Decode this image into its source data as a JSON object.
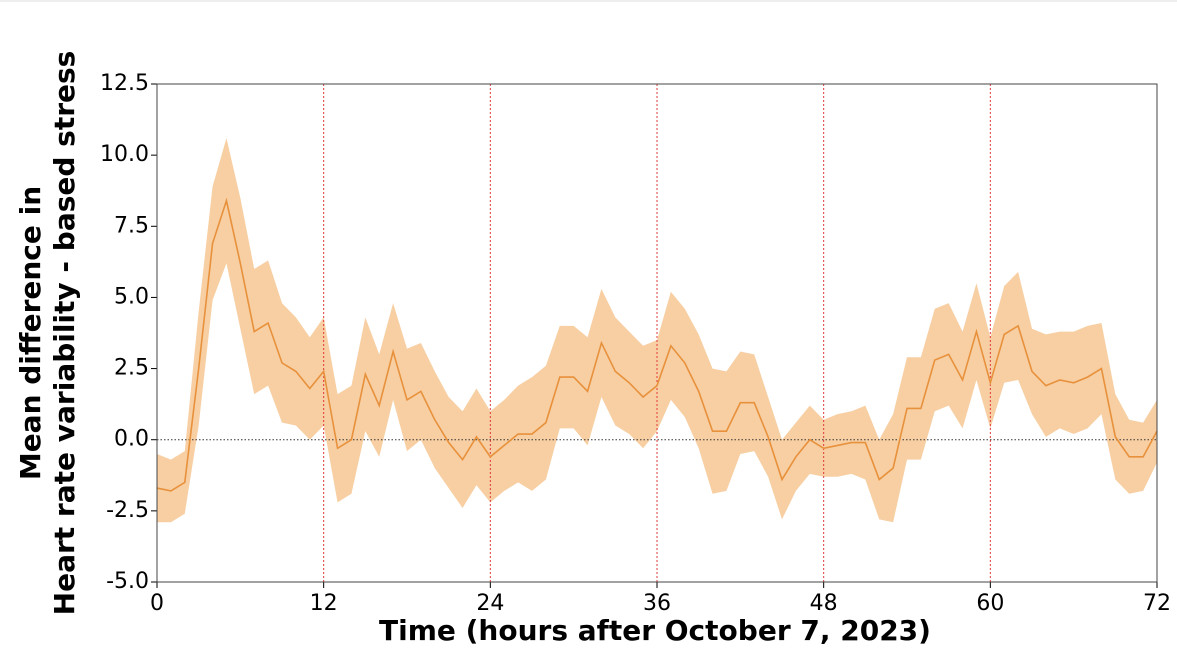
{
  "chart_data": {
    "type": "line",
    "xlabel": "Time (hours after October 7, 2023)",
    "ylabel": [
      "Mean difference in",
      "Heart rate variability - based stress"
    ],
    "x": [
      0,
      1,
      2,
      3,
      4,
      5,
      6,
      7,
      8,
      9,
      10,
      11,
      12,
      13,
      14,
      15,
      16,
      17,
      18,
      19,
      20,
      21,
      22,
      23,
      24,
      25,
      26,
      27,
      28,
      29,
      30,
      31,
      32,
      33,
      34,
      35,
      36,
      37,
      38,
      39,
      40,
      41,
      42,
      43,
      44,
      45,
      46,
      47,
      48,
      49,
      50,
      51,
      52,
      53,
      54,
      55,
      56,
      57,
      58,
      59,
      60,
      61,
      62,
      63,
      64,
      65,
      66,
      67,
      68,
      69,
      70,
      71,
      72
    ],
    "series": [
      {
        "color": "#e8913c",
        "band_color": "#f7cfa3",
        "values": [
          -1.7,
          -1.8,
          -1.5,
          2.5,
          6.9,
          8.4,
          6.2,
          3.8,
          4.1,
          2.7,
          2.4,
          1.8,
          2.4,
          -0.3,
          0.0,
          2.3,
          1.2,
          3.1,
          1.4,
          1.7,
          0.7,
          -0.1,
          -0.7,
          0.1,
          -0.6,
          -0.2,
          0.2,
          0.2,
          0.6,
          2.2,
          2.2,
          1.7,
          3.4,
          2.4,
          2.0,
          1.5,
          1.9,
          3.3,
          2.7,
          1.7,
          0.3,
          0.3,
          1.3,
          1.3,
          0.1,
          -1.4,
          -0.6,
          0.0,
          -0.3,
          -0.2,
          -0.1,
          -0.1,
          -1.4,
          -1.0,
          1.1,
          1.1,
          2.8,
          3.0,
          2.1,
          3.8,
          2.0,
          3.7,
          4.0,
          2.4,
          1.9,
          2.1,
          2.0,
          2.2,
          2.5,
          0.1,
          -0.6,
          -0.6,
          0.3
        ],
        "upper": [
          -0.5,
          -0.7,
          -0.4,
          4.5,
          8.9,
          10.6,
          8.5,
          6.0,
          6.3,
          4.8,
          4.3,
          3.6,
          4.3,
          1.6,
          1.9,
          4.3,
          3.0,
          4.8,
          3.2,
          3.4,
          2.4,
          1.5,
          1.0,
          1.8,
          1.0,
          1.4,
          1.9,
          2.2,
          2.6,
          4.0,
          4.0,
          3.6,
          5.3,
          4.3,
          3.8,
          3.3,
          3.5,
          5.2,
          4.6,
          3.7,
          2.5,
          2.4,
          3.1,
          3.0,
          1.5,
          0.0,
          0.6,
          1.2,
          0.7,
          0.9,
          1.0,
          1.2,
          0.0,
          0.9,
          2.9,
          2.9,
          4.6,
          4.8,
          3.8,
          5.5,
          3.6,
          5.4,
          5.9,
          3.9,
          3.7,
          3.8,
          3.8,
          4.0,
          4.1,
          1.6,
          0.7,
          0.6,
          1.4
        ],
        "lower": [
          -2.9,
          -2.9,
          -2.6,
          0.5,
          4.9,
          6.2,
          3.9,
          1.6,
          1.9,
          0.6,
          0.5,
          0.0,
          0.5,
          -2.2,
          -1.9,
          0.3,
          -0.6,
          1.4,
          -0.4,
          0.0,
          -1.0,
          -1.7,
          -2.4,
          -1.6,
          -2.2,
          -1.8,
          -1.5,
          -1.8,
          -1.4,
          0.4,
          0.4,
          -0.2,
          1.5,
          0.5,
          0.2,
          -0.3,
          0.3,
          1.4,
          0.8,
          -0.3,
          -1.9,
          -1.8,
          -0.5,
          -0.4,
          -1.3,
          -2.8,
          -1.8,
          -1.2,
          -1.3,
          -1.3,
          -1.2,
          -1.4,
          -2.8,
          -2.9,
          -0.7,
          -0.7,
          1.0,
          1.2,
          0.4,
          2.1,
          0.4,
          2.0,
          2.1,
          0.9,
          0.1,
          0.4,
          0.2,
          0.4,
          0.9,
          -1.4,
          -1.9,
          -1.8,
          -0.8
        ]
      }
    ],
    "xlim": [
      0,
      72
    ],
    "xticks": [
      0,
      12,
      24,
      36,
      48,
      60,
      72
    ],
    "ylim": [
      -5.0,
      12.5
    ],
    "yticks": [
      {
        "value": -5,
        "label": "-5.0"
      },
      {
        "value": -2.5,
        "label": "-2.5"
      },
      {
        "value": 0,
        "label": "0.0"
      },
      {
        "value": 2.5,
        "label": "2.5"
      },
      {
        "value": 5,
        "label": "5.0"
      },
      {
        "value": 7.5,
        "label": "7.5"
      },
      {
        "value": 10,
        "label": "10.0"
      },
      {
        "value": 12.5,
        "label": "12.5"
      }
    ],
    "x_grid_color": "#e0383b",
    "reference_line": 0
  }
}
